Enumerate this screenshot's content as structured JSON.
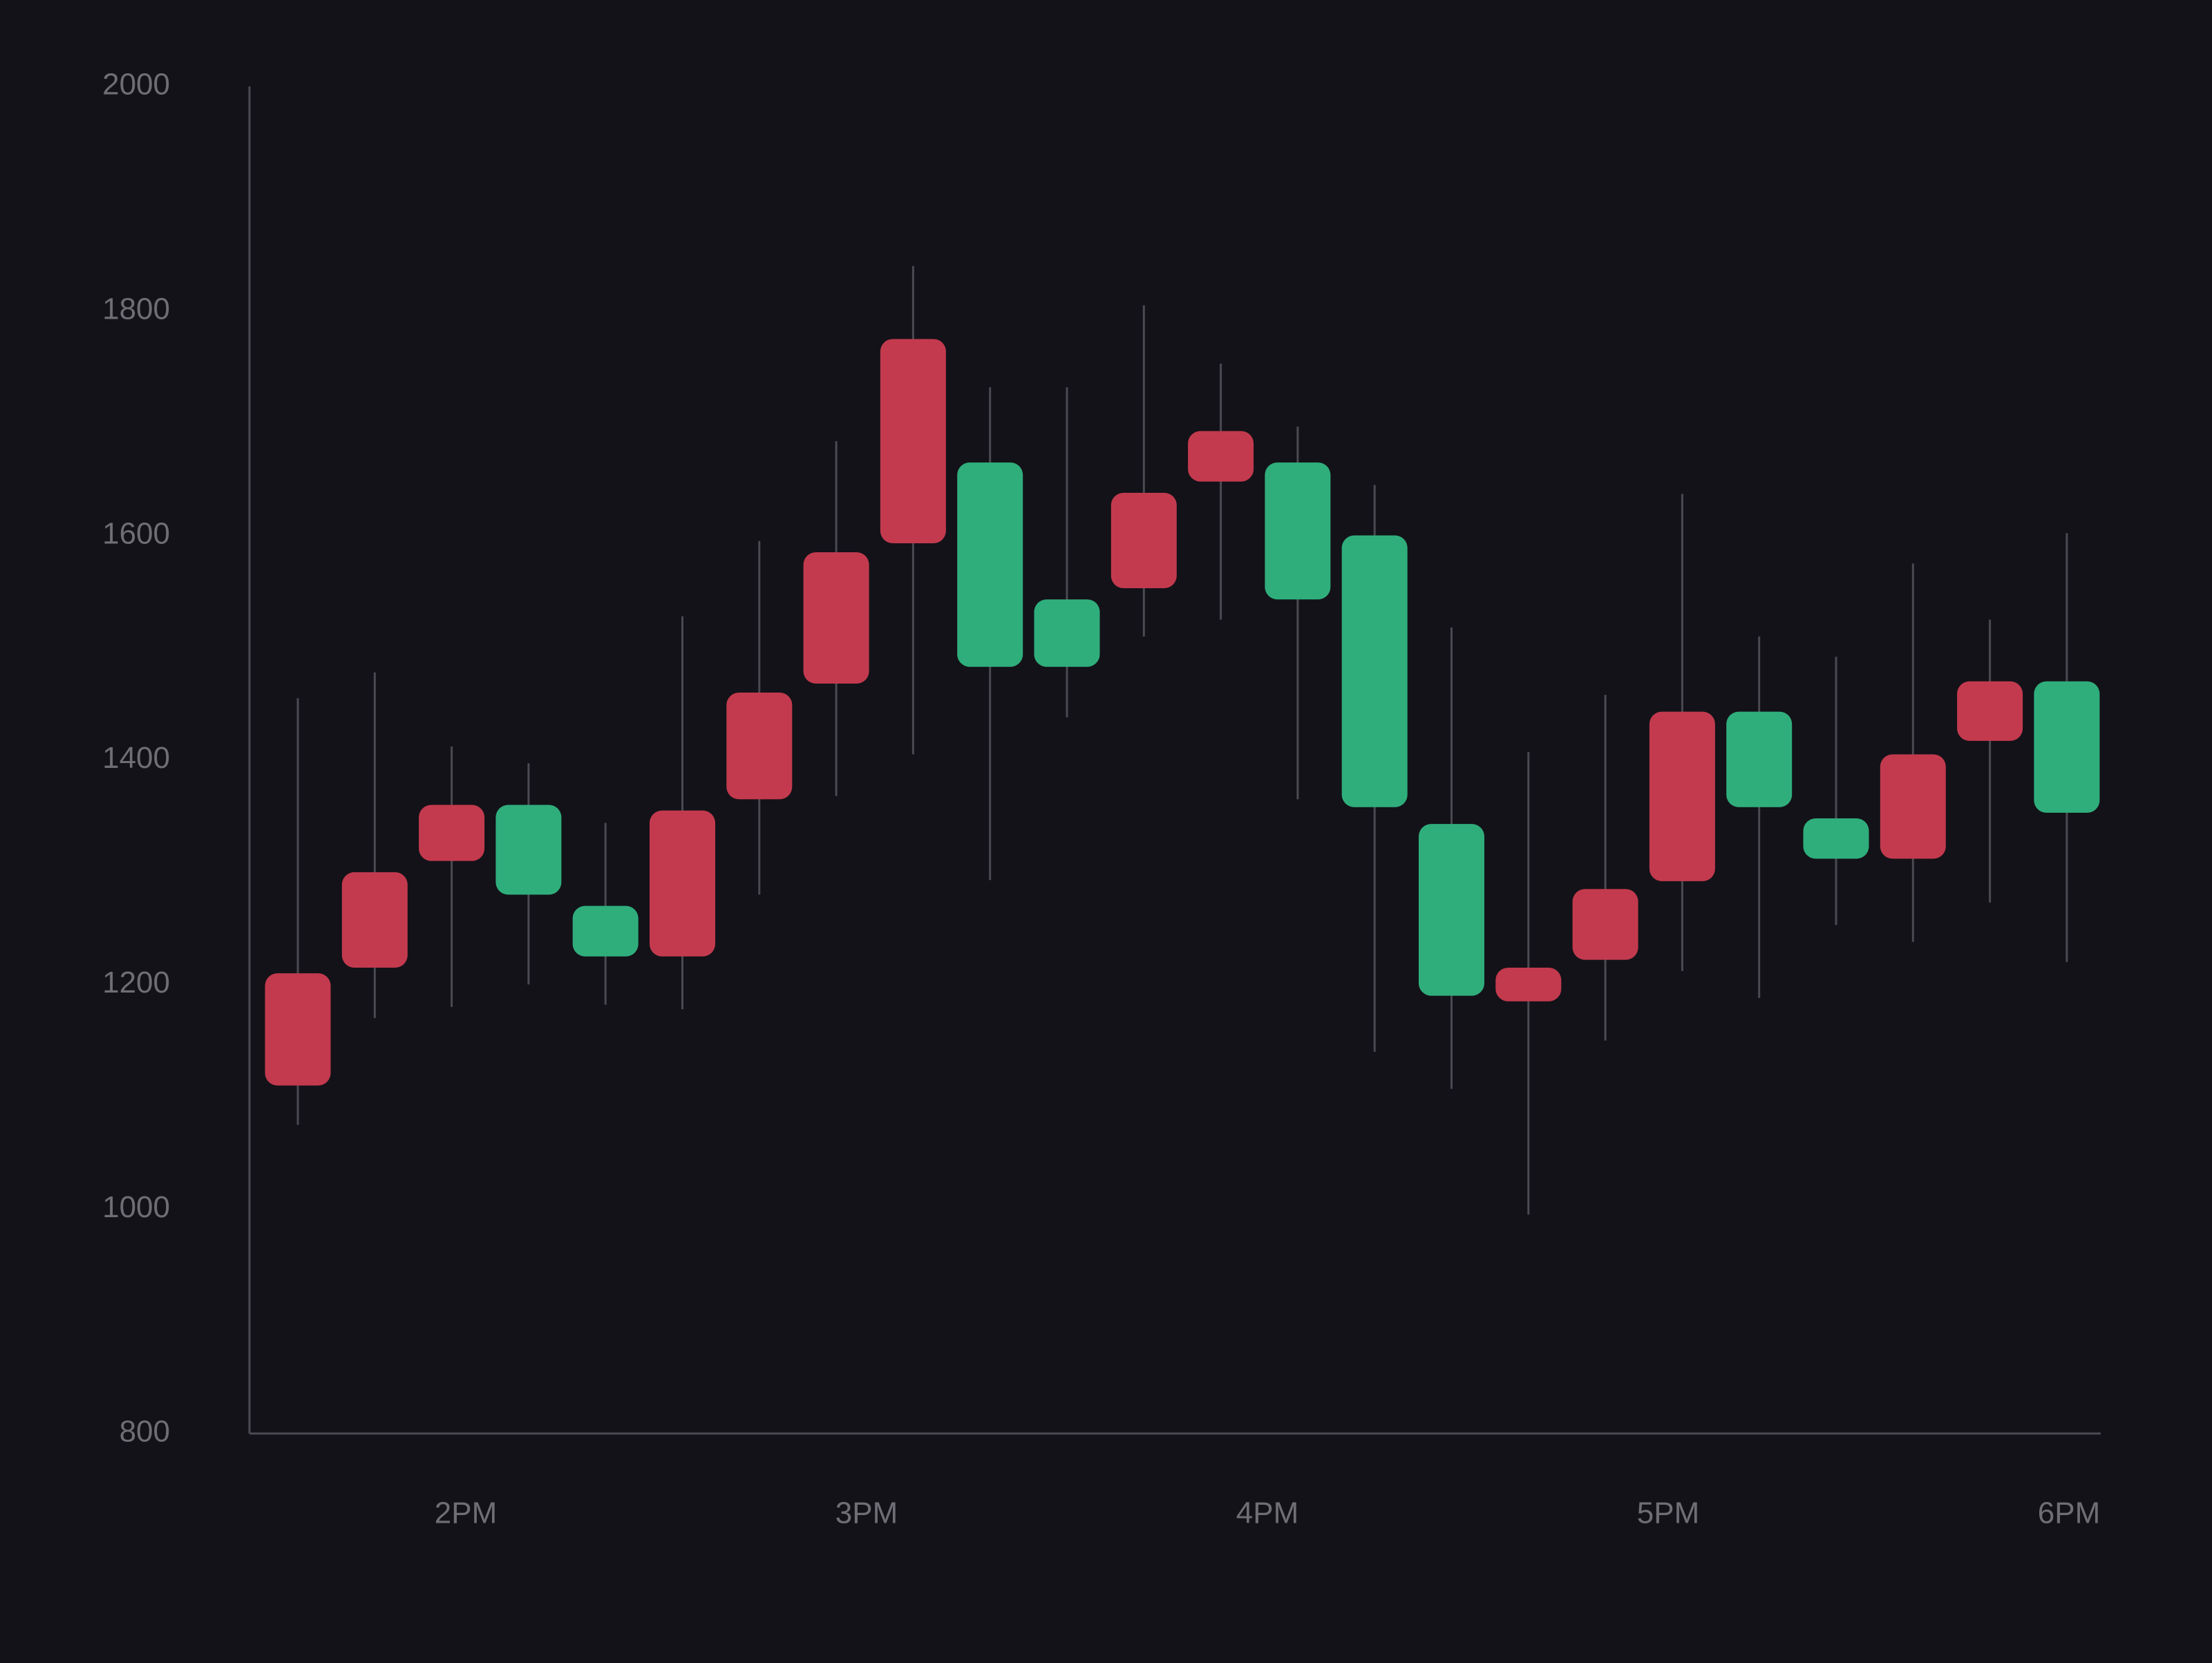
{
  "chart_data": {
    "type": "candlestick",
    "title": "",
    "xlabel": "",
    "ylabel": "",
    "ylim": [
      800,
      2000
    ],
    "yticks": [
      2000,
      1800,
      1600,
      1400,
      1200,
      1000,
      800
    ],
    "xticks": [
      "2PM",
      "3PM",
      "4PM",
      "5PM",
      "6PM"
    ],
    "grid": false,
    "legend": "none",
    "colors": {
      "background": "#131218",
      "up": "#2fae7c",
      "down": "#c33a4e",
      "wick": "#4a4a52",
      "axis": "#4a4a52",
      "tick_text": "#6f6e75"
    },
    "candles": [
      {
        "open": 1210,
        "close": 1110,
        "high": 1455,
        "low": 1075
      },
      {
        "open": 1300,
        "close": 1215,
        "high": 1478,
        "low": 1170
      },
      {
        "open": 1360,
        "close": 1310,
        "high": 1412,
        "low": 1180
      },
      {
        "open": 1280,
        "close": 1360,
        "high": 1397,
        "low": 1200
      },
      {
        "open": 1225,
        "close": 1270,
        "high": 1344,
        "low": 1182
      },
      {
        "open": 1355,
        "close": 1225,
        "high": 1528,
        "low": 1178
      },
      {
        "open": 1460,
        "close": 1365,
        "high": 1595,
        "low": 1280
      },
      {
        "open": 1585,
        "close": 1468,
        "high": 1684,
        "low": 1368
      },
      {
        "open": 1775,
        "close": 1593,
        "high": 1840,
        "low": 1405
      },
      {
        "open": 1483,
        "close": 1665,
        "high": 1732,
        "low": 1293
      },
      {
        "open": 1483,
        "close": 1543,
        "high": 1732,
        "low": 1438
      },
      {
        "open": 1638,
        "close": 1553,
        "high": 1805,
        "low": 1510
      },
      {
        "open": 1693,
        "close": 1648,
        "high": 1753,
        "low": 1525
      },
      {
        "open": 1543,
        "close": 1665,
        "high": 1697,
        "low": 1365
      },
      {
        "open": 1358,
        "close": 1600,
        "high": 1645,
        "low": 1140
      },
      {
        "open": 1190,
        "close": 1343,
        "high": 1518,
        "low": 1107
      },
      {
        "open": 1215,
        "close": 1185,
        "high": 1407,
        "low": 995
      },
      {
        "open": 1285,
        "close": 1222,
        "high": 1458,
        "low": 1150
      },
      {
        "open": 1443,
        "close": 1292,
        "high": 1637,
        "low": 1212
      },
      {
        "open": 1358,
        "close": 1443,
        "high": 1510,
        "low": 1188
      },
      {
        "open": 1312,
        "close": 1348,
        "high": 1492,
        "low": 1253
      },
      {
        "open": 1405,
        "close": 1312,
        "high": 1575,
        "low": 1238
      },
      {
        "open": 1470,
        "close": 1417,
        "high": 1525,
        "low": 1273
      },
      {
        "open": 1353,
        "close": 1470,
        "high": 1602,
        "low": 1220
      }
    ]
  }
}
